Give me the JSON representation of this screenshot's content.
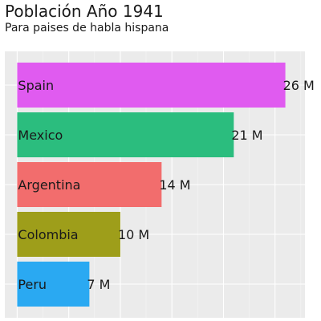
{
  "chart_data": {
    "type": "bar",
    "orientation": "horizontal",
    "title": "Población Año 1941",
    "subtitle": "Para paises de habla hispana",
    "xlabel": "",
    "ylabel": "",
    "grid": true,
    "legend": "none",
    "categories": [
      "Spain",
      "Mexico",
      "Argentina",
      "Colombia",
      "Peru"
    ],
    "values": [
      26,
      21,
      14,
      10,
      7
    ],
    "value_labels": [
      "26 M",
      "21 M",
      "14 M",
      "10 M",
      "7 M"
    ],
    "colors": [
      "#E05BF0",
      "#2BBD7E",
      "#F26D6D",
      "#9E9E1A",
      "#2AA9F2"
    ],
    "xlim": [
      -1.2,
      27.9
    ]
  },
  "colors": {
    "panel_background": "#EBEBEB",
    "grid_major": "#FFFFFF",
    "grid_minor": "#F5F5F5",
    "text": "#1A1A1A"
  }
}
